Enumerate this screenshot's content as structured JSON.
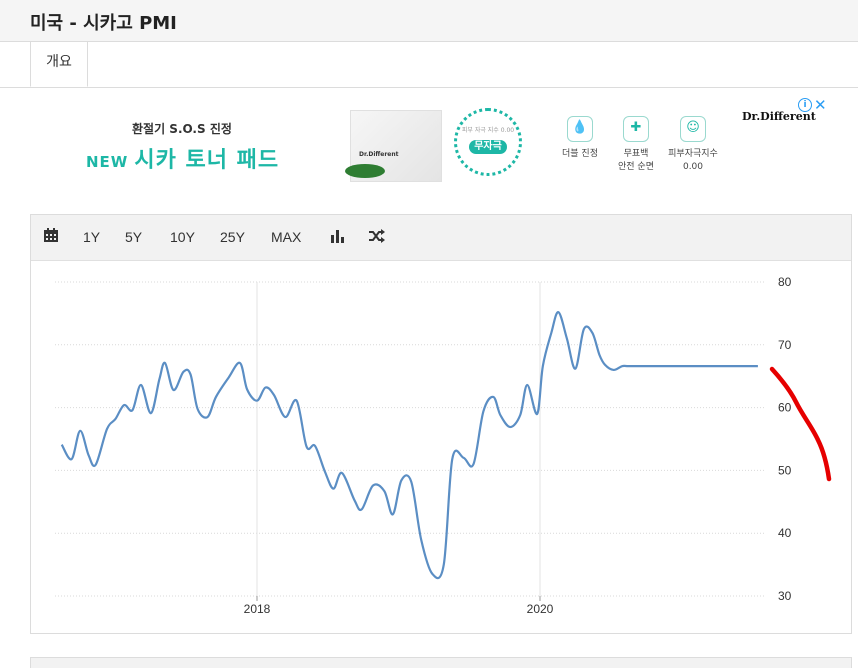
{
  "page": {
    "title": "미국 - 시카고 PMI"
  },
  "tabs": [
    {
      "label": "개요"
    }
  ],
  "ad": {
    "headline": "환절기 S.O.S 진정",
    "new_label": "NEW",
    "product_name": "시카 토너 패드",
    "product_brand": "Dr.Different",
    "badge_small": "피부 자극 지수 0.00",
    "badge_main": "무자극",
    "features": [
      {
        "line1": "더블 진정",
        "line2": "",
        "icon": "droplet-icon"
      },
      {
        "line1": "무표백",
        "line2": "안전 순면",
        "icon": "shield-icon"
      },
      {
        "line1": "피부자극지수",
        "line2": "0.00",
        "icon": "face-icon"
      }
    ],
    "logo": "Dr.Different",
    "info_glyph": "i",
    "close_glyph": "✕"
  },
  "toolbar": {
    "calendar_icon": "calendar-icon",
    "ranges": [
      "1Y",
      "5Y",
      "10Y",
      "25Y",
      "MAX"
    ],
    "chart_type_icon": "bar-chart-icon",
    "compare_icon": "shuffle-icon"
  },
  "colors": {
    "line": "#5b8ec4",
    "annotation": "#e60000",
    "accent": "#1db7a6"
  },
  "chart_data": {
    "type": "line",
    "ylim": [
      30,
      80
    ],
    "yticks": [
      30,
      40,
      50,
      60,
      70,
      80
    ],
    "xtick_labels": [
      "2018",
      "2020"
    ],
    "x_start": 2016.62,
    "x_end": 2021.62,
    "grid": true,
    "axis_position": "right",
    "series": [
      {
        "x": [
          2016.62,
          2016.69,
          2016.75,
          2016.81,
          2016.86,
          2016.94,
          2017.0,
          2017.06,
          2017.12,
          2017.18,
          2017.25,
          2017.31,
          2017.35,
          2017.41,
          2017.48,
          2017.53,
          2017.58,
          2017.65,
          2017.71,
          2017.8,
          2017.88,
          2017.93,
          2018.0,
          2018.06,
          2018.12,
          2018.2,
          2018.28,
          2018.35,
          2018.41,
          2018.48,
          2018.54,
          2018.6,
          2018.69,
          2018.74,
          2018.82,
          2018.9,
          2018.96,
          2019.02,
          2019.09,
          2019.16,
          2019.24,
          2019.32,
          2019.38,
          2019.46,
          2019.53,
          2019.6,
          2019.67,
          2019.72,
          2019.79,
          2019.86,
          2019.91,
          2019.98,
          2020.02,
          2020.08,
          2020.13,
          2020.19,
          2020.25,
          2020.31,
          2020.37,
          2020.42,
          2020.46,
          2020.52,
          2020.58,
          2020.62,
          2020.67,
          2020.7,
          2020.76,
          2020.82,
          2020.88,
          2020.94,
          2021.0,
          2021.06,
          2021.12,
          2021.2,
          2021.26,
          2021.33,
          2021.37,
          2021.42,
          2021.46,
          2021.49,
          2021.54,
          2021.61
        ],
        "y": [
          54.1,
          51.8,
          56.3,
          52.4,
          50.9,
          56.6,
          58.2,
          60.4,
          59.6,
          63.6,
          59.1,
          64.5,
          67.1,
          62.8,
          65.7,
          65.3,
          59.8,
          58.5,
          61.7,
          64.8,
          67.1,
          62.9,
          61.1,
          63.2,
          62.0,
          58.5,
          61.1,
          53.8,
          53.9,
          49.8,
          47.1,
          49.6,
          45.2,
          43.8,
          47.6,
          46.7,
          43.0,
          48.4,
          48.2,
          39.0,
          33.5,
          35.0,
          51.8,
          52.0,
          51.0,
          59.4,
          61.7,
          58.8,
          56.9,
          58.8,
          63.6,
          59.0,
          66.6,
          71.9,
          75.2,
          71.0,
          66.2,
          72.5,
          71.9,
          68.4,
          66.8,
          66.0,
          66.6,
          66.6,
          66.6,
          66.6,
          66.6,
          66.6,
          66.6,
          66.6,
          66.6,
          66.6,
          66.6,
          66.6,
          66.6,
          66.6,
          66.6,
          66.6,
          66.6,
          66.6,
          66.6,
          66.6
        ]
      }
    ]
  }
}
